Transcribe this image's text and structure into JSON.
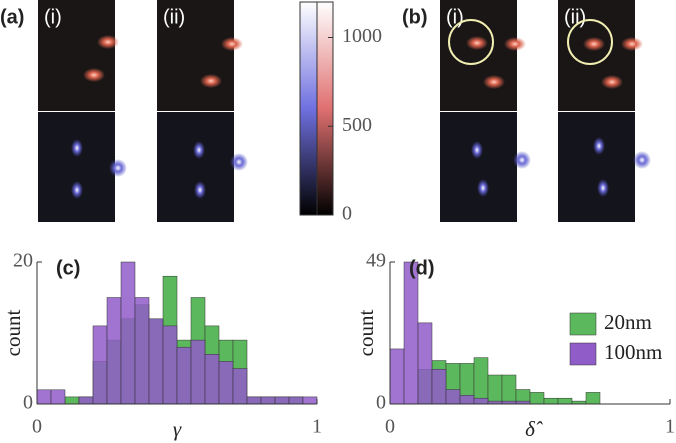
{
  "panels": {
    "a": {
      "label": "(a)",
      "sublabels": [
        "(i)",
        "(ii)"
      ]
    },
    "b": {
      "label": "(b)",
      "sublabels": [
        "(i)",
        "(ii)"
      ]
    }
  },
  "colorbar": {
    "ylim": [
      0,
      1200
    ],
    "yticks": [
      0,
      500,
      1000
    ]
  },
  "chart_data": [
    {
      "type": "histogram",
      "label": "(c)",
      "xlabel": "γ",
      "ylabel": "count",
      "bins": [
        0,
        0.05,
        0.1,
        0.15,
        0.2,
        0.25,
        0.3,
        0.35,
        0.4,
        0.45,
        0.5,
        0.55,
        0.6,
        0.65,
        0.7,
        0.75,
        0.8,
        0.85,
        0.9,
        0.95,
        1
      ],
      "xlim": [
        0,
        1
      ],
      "xticks": [
        0,
        1
      ],
      "ylim": [
        0,
        20
      ],
      "yticks": [
        0,
        20
      ],
      "series": [
        {
          "color": "#5cb85c",
          "values": [
            0,
            0,
            1,
            1,
            6,
            9,
            12,
            14,
            12,
            18,
            9,
            15,
            11,
            9,
            9,
            1,
            1,
            1,
            1,
            0
          ]
        },
        {
          "color": "#8f5cc8",
          "values": [
            2,
            2,
            0,
            1,
            11,
            15,
            20,
            15,
            12,
            11,
            8,
            9,
            7,
            6,
            5,
            1,
            1,
            1,
            1,
            1
          ]
        }
      ]
    },
    {
      "type": "histogram",
      "label": "(d)",
      "xlabel": "δ̂",
      "ylabel": "count",
      "bins": [
        0,
        0.05,
        0.1,
        0.15,
        0.2,
        0.25,
        0.3,
        0.35,
        0.4,
        0.45,
        0.5,
        0.55,
        0.6,
        0.65,
        0.7,
        0.75,
        0.8,
        0.85,
        0.9,
        0.95,
        1
      ],
      "xlim": [
        0,
        1
      ],
      "xticks": [
        0,
        1
      ],
      "ylim": [
        0,
        49
      ],
      "yticks": [
        0,
        49
      ],
      "legend": "right",
      "series": [
        {
          "name": "20nm",
          "color": "#5cb85c",
          "values": [
            0,
            0,
            12,
            15,
            14,
            14,
            16,
            10,
            10,
            5,
            4,
            2,
            2,
            1,
            4,
            0,
            0,
            0,
            0,
            0
          ]
        },
        {
          "name": "100nm",
          "color": "#8f5cc8",
          "values": [
            19,
            49,
            28,
            12,
            5,
            3,
            2,
            1,
            1,
            1,
            0,
            0,
            0,
            0,
            0,
            0,
            0,
            0,
            0,
            0
          ]
        }
      ]
    }
  ]
}
